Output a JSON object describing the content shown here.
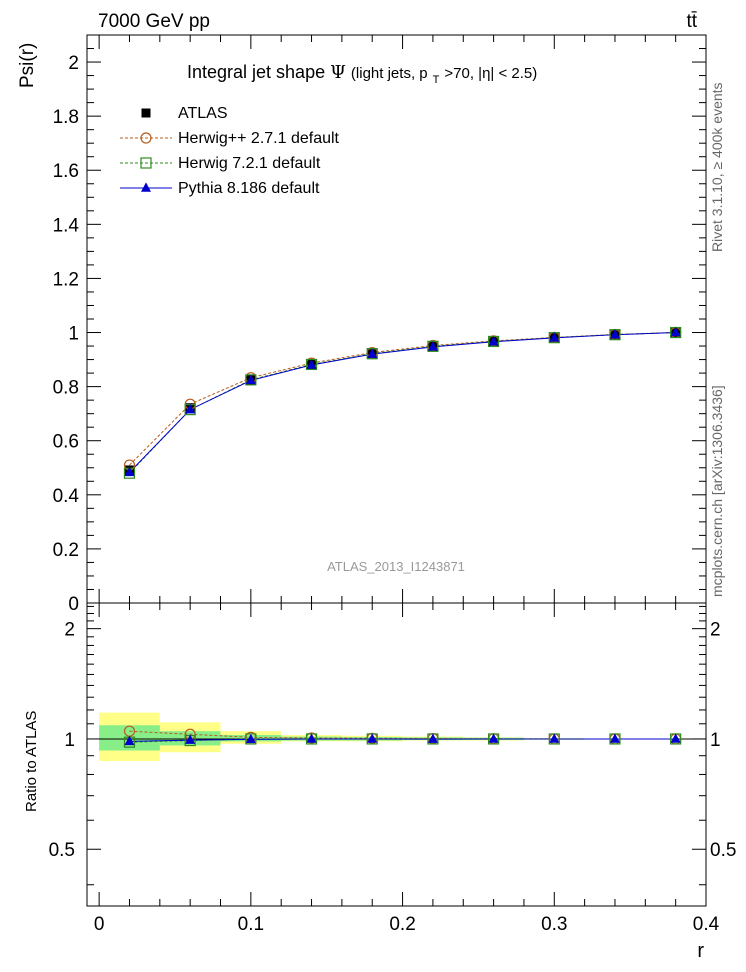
{
  "header": {
    "energy_label": "7000 GeV pp",
    "process_label": "tt̄"
  },
  "side_labels": {
    "rivet": "Rivet 3.1.10, ≥ 400k events",
    "mcplots": "mcplots.cern.ch [arXiv:1306.3436]"
  },
  "chart_data": [
    {
      "type": "line",
      "panel": "main",
      "title": "Integral jet shape",
      "title_symbol": "Ψ",
      "title_qualifier": "(light jets, p",
      "title_subscript": "T",
      "title_tail": ">70, |η| < 2.5)",
      "analysis_label": "ATLAS_2013_I1243871",
      "xlabel": "r",
      "ylabel": "Psi(r)",
      "xlim": [
        -0.008,
        0.4
      ],
      "ylim": [
        0,
        2.1
      ],
      "x_ticks": [
        0,
        0.1,
        0.2,
        0.3,
        0.4
      ],
      "x_tick_labels": [
        "0",
        "0.1",
        "0.2",
        "0.3",
        "0.4"
      ],
      "y_ticks": [
        0,
        0.2,
        0.4,
        0.6,
        0.8,
        1,
        1.2,
        1.4,
        1.6,
        1.8,
        2
      ],
      "y_tick_labels": [
        "0",
        "0.2",
        "0.4",
        "0.6",
        "0.8",
        "1",
        "1.2",
        "1.4",
        "1.6",
        "1.8",
        "2"
      ],
      "x": [
        0.02,
        0.06,
        0.1,
        0.14,
        0.18,
        0.22,
        0.26,
        0.3,
        0.34,
        0.38
      ],
      "series": [
        {
          "name": "ATLAS",
          "marker": "square-filled",
          "color": "#000000",
          "values": [
            0.49,
            0.72,
            0.825,
            0.88,
            0.92,
            0.948,
            0.966,
            0.98,
            0.992,
            1.0
          ]
        },
        {
          "name": "Herwig++ 2.7.1 default",
          "marker": "circle-open",
          "color": "#b85c1e",
          "linestyle": "dashed",
          "values": [
            0.51,
            0.735,
            0.833,
            0.887,
            0.926,
            0.952,
            0.969,
            0.982,
            0.993,
            1.0
          ]
        },
        {
          "name": "Herwig 7.2.1 default",
          "marker": "square-open",
          "color": "#2e8b1e",
          "linestyle": "dashed",
          "values": [
            0.48,
            0.715,
            0.825,
            0.882,
            0.922,
            0.949,
            0.967,
            0.981,
            0.992,
            1.0
          ]
        },
        {
          "name": "Pythia 8.186 default",
          "marker": "triangle-filled",
          "color": "#0000cc",
          "linestyle": "solid",
          "values": [
            0.483,
            0.715,
            0.823,
            0.88,
            0.92,
            0.947,
            0.966,
            0.98,
            0.992,
            1.0
          ]
        }
      ]
    },
    {
      "type": "line",
      "panel": "ratio",
      "ylabel": "Ratio to ATLAS",
      "xlabel": "r",
      "xlim": [
        -0.008,
        0.4
      ],
      "ylim": [
        0.35,
        2.35
      ],
      "y_ticks": [
        0.5,
        1,
        2
      ],
      "y_tick_labels": [
        "0.5",
        "1",
        "2"
      ],
      "x": [
        0.02,
        0.06,
        0.1,
        0.14,
        0.18,
        0.22,
        0.26,
        0.3,
        0.34,
        0.38
      ],
      "bin_edges": [
        0.0,
        0.04,
        0.08,
        0.12,
        0.16,
        0.2,
        0.24,
        0.28,
        0.32,
        0.36,
        0.4
      ],
      "band_total": [
        [
          0.87,
          1.18
        ],
        [
          0.92,
          1.11
        ],
        [
          0.97,
          1.05
        ],
        [
          0.985,
          1.025
        ],
        [
          0.985,
          1.02
        ],
        [
          0.99,
          1.015
        ],
        [
          0.99,
          1.01
        ],
        [
          0.995,
          1.005
        ],
        [
          0.997,
          1.003
        ],
        [
          0.998,
          1.002
        ]
      ],
      "band_stat": [
        [
          0.93,
          1.09
        ],
        [
          0.96,
          1.05
        ],
        [
          0.985,
          1.025
        ],
        [
          0.99,
          1.015
        ],
        [
          0.99,
          1.012
        ],
        [
          0.993,
          1.01
        ],
        [
          0.994,
          1.008
        ],
        [
          0.996,
          1.004
        ],
        [
          0.998,
          1.002
        ],
        [
          0.999,
          1.001
        ]
      ],
      "band_colors": {
        "total": "#ffff88",
        "stat": "#88ee88"
      },
      "series": [
        {
          "name": "Herwig++ 2.7.1 default",
          "values": [
            1.05,
            1.03,
            1.01,
            1.006,
            1.004,
            1.002,
            1.001,
            1.0,
            1.0,
            1.0
          ]
        },
        {
          "name": "Herwig 7.2.1 default",
          "values": [
            0.98,
            0.99,
            1.0,
            1.0,
            1.0,
            1.0,
            1.0,
            1.0,
            1.0,
            1.0
          ]
        },
        {
          "name": "Pythia 8.186 default",
          "values": [
            0.985,
            0.993,
            0.997,
            1.0,
            1.0,
            0.999,
            1.0,
            1.0,
            1.0,
            1.0
          ]
        }
      ]
    }
  ]
}
